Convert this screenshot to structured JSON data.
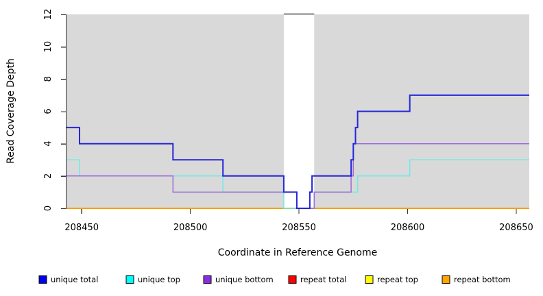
{
  "chart_data": {
    "type": "line",
    "subtype": "step-coverage",
    "title": "",
    "xlabel": "Coordinate in Reference Genome",
    "ylabel": "Read Coverage Depth",
    "xlim": [
      208443,
      208656
    ],
    "ylim": [
      0,
      12
    ],
    "x_ticks": [
      208450,
      208500,
      208550,
      208600,
      208650
    ],
    "y_ticks": [
      0,
      2,
      4,
      6,
      8,
      10,
      12
    ],
    "grid": "off",
    "plot_bg_color": "#D9D9D9",
    "axis_color": "#333333",
    "gap_region": {
      "from": 208543,
      "to": 208557,
      "fill": "#FFFFFF",
      "top_border_color": "#808080"
    },
    "legend_position": "bottom",
    "series": [
      {
        "name": "unique total",
        "line_color": "#2626D8",
        "legend_color": "#0000EE",
        "line_width": 2,
        "start_value": 5,
        "steps": [
          [
            208449,
            4
          ],
          [
            208492,
            3
          ],
          [
            208515,
            2
          ],
          [
            208543,
            1
          ],
          [
            208549,
            0
          ],
          [
            208555,
            1
          ],
          [
            208556,
            2
          ],
          [
            208574,
            3
          ],
          [
            208575,
            4
          ],
          [
            208576,
            5
          ],
          [
            208577,
            6
          ],
          [
            208601,
            7
          ]
        ]
      },
      {
        "name": "unique top",
        "line_color": "#72E9E4",
        "legend_color": "#00FFFF",
        "line_width": 1.5,
        "start_value": 3,
        "steps": [
          [
            208449,
            2
          ],
          [
            208515,
            1
          ],
          [
            208543,
            0
          ],
          [
            208557,
            1
          ],
          [
            208577,
            2
          ],
          [
            208601,
            3
          ]
        ]
      },
      {
        "name": "unique bottom",
        "line_color": "#9D6BDB",
        "legend_color": "#8B2BE2",
        "line_width": 1.5,
        "start_value": 2,
        "steps": [
          [
            208492,
            1
          ],
          [
            208549,
            0
          ],
          [
            208557,
            1
          ],
          [
            208574,
            2
          ],
          [
            208575,
            4
          ]
        ]
      },
      {
        "name": "repeat total",
        "line_color": "#FF0000",
        "legend_color": "#FF0000",
        "line_width": 1.5,
        "start_value": 0,
        "steps": []
      },
      {
        "name": "repeat top",
        "line_color": "#FFFF00",
        "legend_color": "#FFFF00",
        "line_width": 1.5,
        "start_value": 0,
        "steps": []
      },
      {
        "name": "repeat bottom",
        "line_color": "#FFA500",
        "legend_color": "#FFA500",
        "line_width": 1.5,
        "start_value": 0,
        "steps": []
      }
    ],
    "draw_order": [
      "repeat total",
      "repeat top",
      "repeat bottom",
      "unique top",
      "unique bottom",
      "unique total"
    ]
  }
}
